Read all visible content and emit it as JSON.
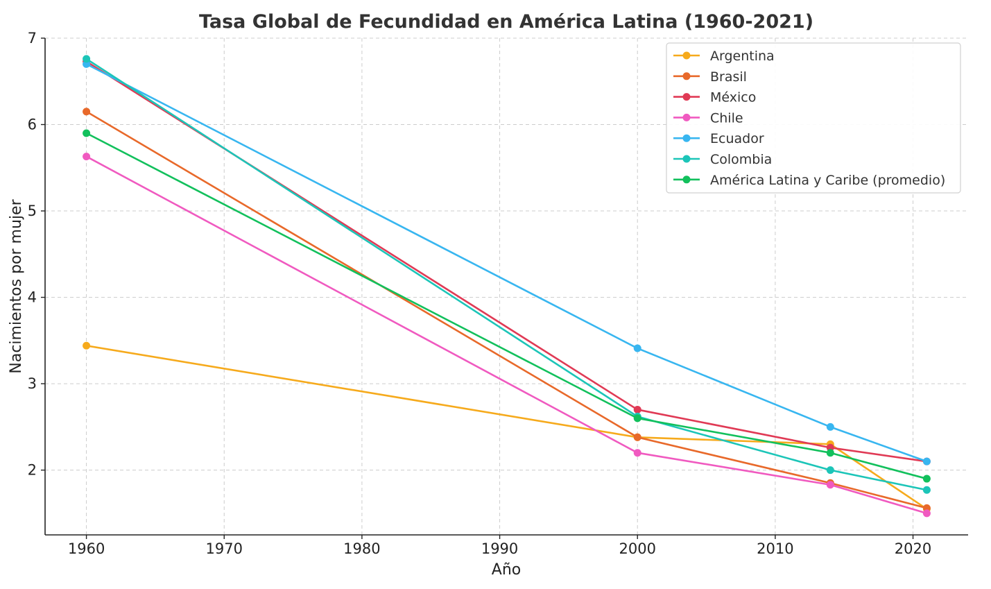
{
  "chart_data": {
    "type": "line",
    "title": "Tasa Global de Fecundidad en América Latina (1960-2021)",
    "xlabel": "Año",
    "ylabel": "Nacimientos por mujer",
    "xlim": [
      1957,
      2024
    ],
    "ylim": [
      1.25,
      7
    ],
    "xticks": [
      1960,
      1970,
      1980,
      1990,
      2000,
      2010,
      2020
    ],
    "yticks": [
      2,
      3,
      4,
      5,
      6,
      7
    ],
    "grid": true,
    "legend_position": "top-right",
    "x": [
      1960,
      2000,
      2014,
      2021
    ],
    "series": [
      {
        "name": "Argentina",
        "color": "#f6aa1c",
        "values": [
          3.44,
          2.38,
          2.3,
          1.55
        ]
      },
      {
        "name": "Brasil",
        "color": "#e8692a",
        "values": [
          6.15,
          2.38,
          1.85,
          1.56
        ]
      },
      {
        "name": "México",
        "color": "#e03a55",
        "values": [
          6.73,
          2.7,
          2.26,
          2.1
        ]
      },
      {
        "name": "Chile",
        "color": "#f05ac0",
        "values": [
          5.63,
          2.2,
          1.83,
          1.5
        ]
      },
      {
        "name": "Ecuador",
        "color": "#38b6f0",
        "values": [
          6.7,
          3.41,
          2.5,
          2.1
        ]
      },
      {
        "name": "Colombia",
        "color": "#1cc5b8",
        "values": [
          6.76,
          2.62,
          2.0,
          1.77
        ]
      },
      {
        "name": "América Latina y Caribe (promedio)",
        "color": "#12c05c",
        "values": [
          5.9,
          2.6,
          2.2,
          1.9
        ]
      }
    ]
  }
}
